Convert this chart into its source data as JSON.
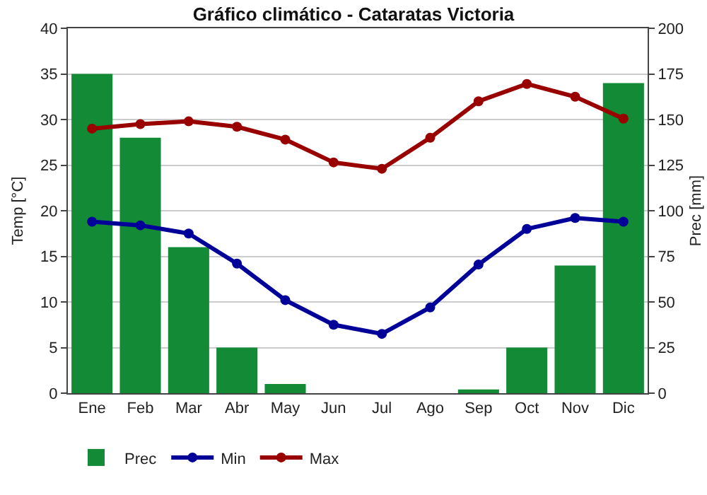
{
  "chart_data": {
    "type": "line",
    "title": "Gráfico climático - Cataratas Victoria",
    "ylabel": "Temp [°C]",
    "y2label": "Prec [mm]",
    "categories": [
      "Ene",
      "Feb",
      "Mar",
      "Abr",
      "May",
      "Jun",
      "Jul",
      "Ago",
      "Sep",
      "Oct",
      "Nov",
      "Dic"
    ],
    "series": [
      {
        "name": "Prec",
        "type": "bar",
        "axis": "y2",
        "color": "#138a36",
        "values": [
          175,
          140,
          80,
          25,
          5,
          0,
          0,
          0,
          2,
          25,
          70,
          170
        ]
      },
      {
        "name": "Min",
        "color": "#000099",
        "values": [
          18.8,
          18.4,
          17.5,
          14.2,
          10.2,
          7.5,
          6.5,
          9.4,
          14.1,
          18.0,
          19.2,
          18.8
        ]
      },
      {
        "name": "Max",
        "color": "#990000",
        "values": [
          29.0,
          29.5,
          29.8,
          29.2,
          27.8,
          25.3,
          24.6,
          28.0,
          32.0,
          33.9,
          32.5,
          30.1
        ]
      }
    ],
    "ylim": [
      0,
      40
    ],
    "yticks": [
      0,
      5,
      10,
      15,
      20,
      25,
      30,
      35,
      40
    ],
    "y2lim": [
      0,
      200
    ],
    "y2ticks": [
      0,
      25,
      50,
      75,
      100,
      125,
      150,
      175,
      200
    ],
    "grid": "y",
    "legend": "bottom left",
    "marker": "circle",
    "line_style": "solid"
  }
}
